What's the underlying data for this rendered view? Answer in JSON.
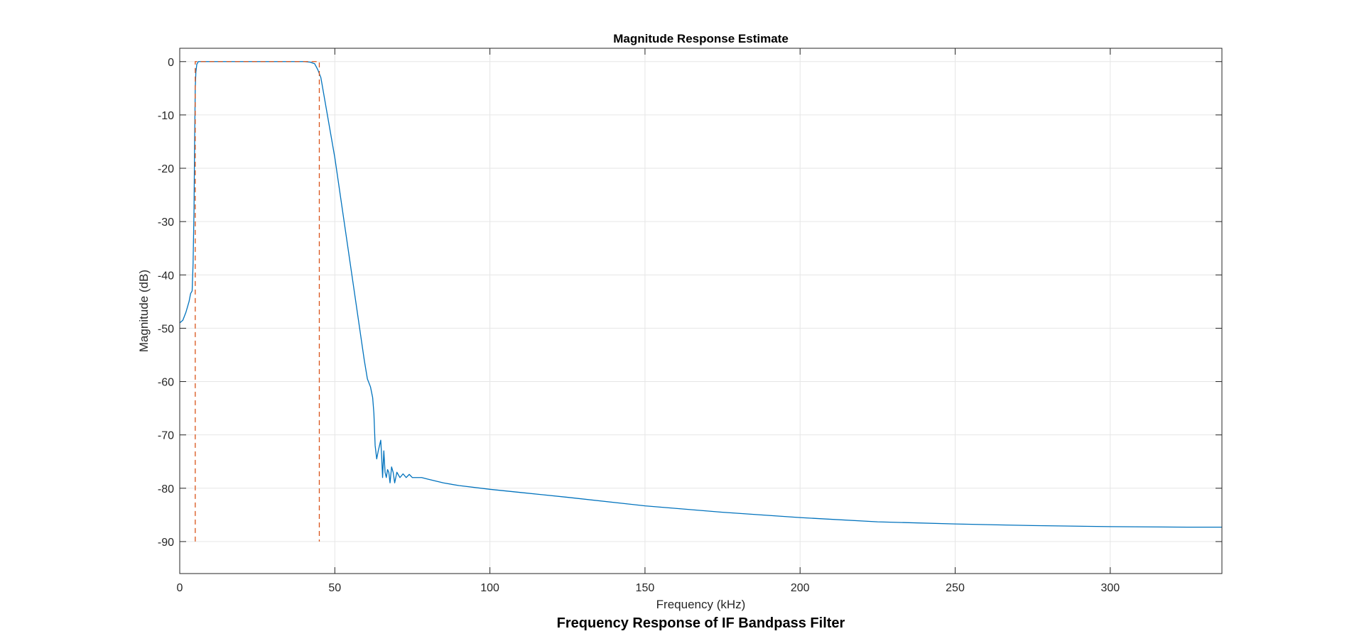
{
  "figure": {
    "caption": "Frequency Response of IF Bandpass Filter"
  },
  "chart_data": {
    "type": "line",
    "title": "Magnitude Response Estimate",
    "xlabel": "Frequency (kHz)",
    "ylabel": "Magnitude (dB)",
    "xlim": [
      0,
      336
    ],
    "ylim": [
      -96,
      2.5
    ],
    "xticks": [
      0,
      50,
      100,
      150,
      200,
      250,
      300
    ],
    "yticks": [
      0,
      -10,
      -20,
      -30,
      -40,
      -50,
      -60,
      -70,
      -80,
      -90
    ],
    "grid": true,
    "colors": {
      "response": "#0072BD",
      "mask": "#D95319",
      "grid": "#E6E6E6",
      "axes": "#262626"
    },
    "series": [
      {
        "style": "solid",
        "x": [
          0,
          1,
          2,
          3,
          3.5,
          4,
          4.3,
          4.6,
          4.8,
          5.0,
          5.2,
          5.5,
          6,
          8,
          20,
          35,
          40,
          42,
          43.5,
          44.5,
          45.5,
          47,
          50,
          53,
          56,
          58,
          59.5,
          60.5,
          61.5,
          62.2,
          62.6,
          63.0,
          63.5,
          64.0,
          64.4,
          64.8,
          65.1,
          65.4,
          65.8,
          66.2,
          66.6,
          67.0,
          67.4,
          67.8,
          68.3,
          68.8,
          69.3,
          70,
          71,
          72,
          73,
          74,
          75,
          76,
          78,
          80,
          85,
          90,
          100,
          110,
          125,
          150,
          175,
          200,
          225,
          250,
          275,
          300,
          325,
          336
        ],
        "y": [
          -49,
          -48.5,
          -47,
          -45,
          -43.5,
          -43,
          -38,
          -28,
          -15,
          -5,
          -2,
          -0.5,
          0,
          0,
          0,
          0,
          0,
          -0.1,
          -0.4,
          -1.5,
          -3,
          -8,
          -18,
          -30,
          -42,
          -50,
          -56,
          -59.5,
          -61,
          -63,
          -66,
          -72,
          -74.5,
          -73,
          -72,
          -71,
          -74,
          -78,
          -73,
          -77,
          -78,
          -76.5,
          -77,
          -79,
          -76,
          -77,
          -79,
          -77,
          -78,
          -77.3,
          -78,
          -77.4,
          -78,
          -78,
          -78,
          -78.3,
          -79,
          -79.5,
          -80.2,
          -80.8,
          -81.7,
          -83.3,
          -84.5,
          -85.5,
          -86.3,
          -86.7,
          -87.0,
          -87.2,
          -87.3,
          -87.3
        ]
      },
      {
        "style": "dashed",
        "x": [
          5,
          5,
          45,
          45
        ],
        "y": [
          -90,
          0,
          0,
          -90
        ]
      }
    ]
  }
}
